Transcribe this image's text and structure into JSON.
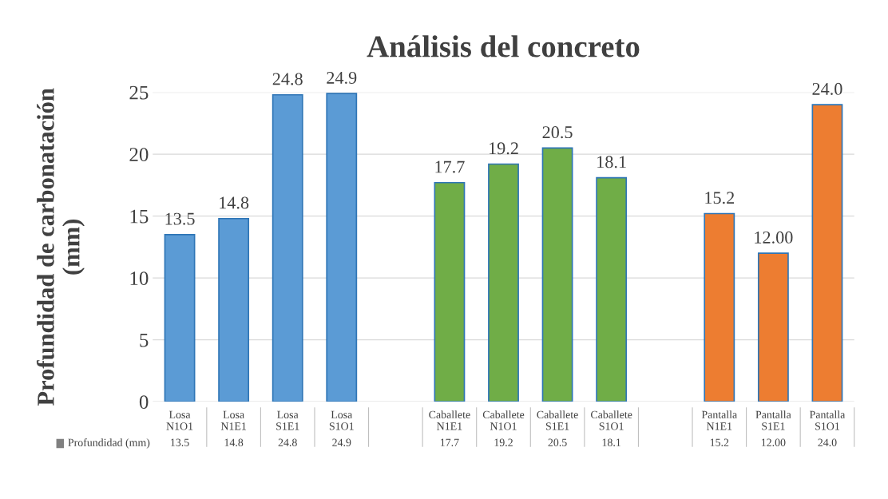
{
  "chart_data": {
    "type": "bar",
    "title": "Análisis del concreto",
    "ylabel": "Profundidad de carbonatación\n(mm)",
    "categories": [
      "Losa\nN1O1",
      "Losa\nN1E1",
      "Losa\nS1E1",
      "Losa\nS1O1",
      null,
      "Caballete\nN1E1",
      "Caballete\nN1O1",
      "Caballete\nS1E1",
      "Caballete\nS1O1",
      null,
      "Pantalla\nN1E1",
      "Pantalla\nS1E1",
      "Pantalla\nS1O1"
    ],
    "series": [
      {
        "name": "Profundidad (mm)",
        "values": [
          13.5,
          14.8,
          24.8,
          24.9,
          null,
          17.7,
          19.2,
          20.5,
          18.1,
          null,
          15.2,
          12.0,
          24.0
        ],
        "value_labels": [
          "13.5",
          "14.8",
          "24.8",
          "24.9",
          null,
          "17.7",
          "19.2",
          "20.5",
          "18.1",
          null,
          "15.2",
          "12.00",
          "24.0"
        ],
        "colors": [
          "#5b9bd5",
          "#5b9bd5",
          "#5b9bd5",
          "#5b9bd5",
          null,
          "#70ad47",
          "#70ad47",
          "#70ad47",
          "#70ad47",
          null,
          "#ed7d31",
          "#ed7d31",
          "#ed7d31"
        ]
      }
    ],
    "ylim": [
      0,
      25
    ],
    "yticks": [
      0,
      5,
      10,
      15,
      20,
      25
    ],
    "grid": "y",
    "legend": "bottom"
  }
}
